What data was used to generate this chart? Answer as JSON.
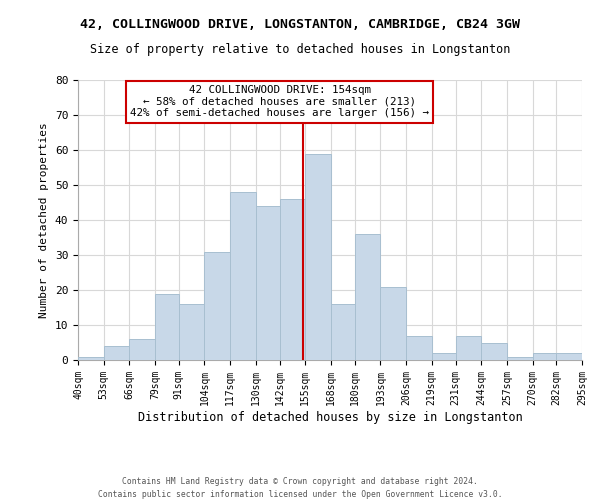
{
  "title": "42, COLLINGWOOD DRIVE, LONGSTANTON, CAMBRIDGE, CB24 3GW",
  "subtitle": "Size of property relative to detached houses in Longstanton",
  "xlabel": "Distribution of detached houses by size in Longstanton",
  "ylabel": "Number of detached properties",
  "footnote1": "Contains HM Land Registry data © Crown copyright and database right 2024.",
  "footnote2": "Contains public sector information licensed under the Open Government Licence v3.0.",
  "bar_heights": [
    1,
    4,
    6,
    19,
    16,
    31,
    48,
    44,
    46,
    59,
    16,
    36,
    21,
    7,
    2,
    7,
    5,
    1,
    2,
    2
  ],
  "bin_edges": [
    40,
    53,
    66,
    79,
    91,
    104,
    117,
    130,
    142,
    155,
    168,
    180,
    193,
    206,
    219,
    231,
    244,
    257,
    270,
    282,
    295
  ],
  "bar_color": "#c8d8e8",
  "bar_edge_color": "#a8bfd0",
  "property_size": 154,
  "vline_color": "#cc0000",
  "annotation_title": "42 COLLINGWOOD DRIVE: 154sqm",
  "annotation_line1": "← 58% of detached houses are smaller (213)",
  "annotation_line2": "42% of semi-detached houses are larger (156) →",
  "annotation_box_color": "#ffffff",
  "annotation_box_edge": "#cc0000",
  "ylim": [
    0,
    80
  ],
  "yticks": [
    0,
    10,
    20,
    30,
    40,
    50,
    60,
    70,
    80
  ],
  "grid_color": "#d8d8d8",
  "background_color": "#ffffff",
  "tick_labels": [
    "40sqm",
    "53sqm",
    "66sqm",
    "79sqm",
    "91sqm",
    "104sqm",
    "117sqm",
    "130sqm",
    "142sqm",
    "155sqm",
    "168sqm",
    "180sqm",
    "193sqm",
    "206sqm",
    "219sqm",
    "231sqm",
    "244sqm",
    "257sqm",
    "270sqm",
    "282sqm",
    "295sqm"
  ]
}
